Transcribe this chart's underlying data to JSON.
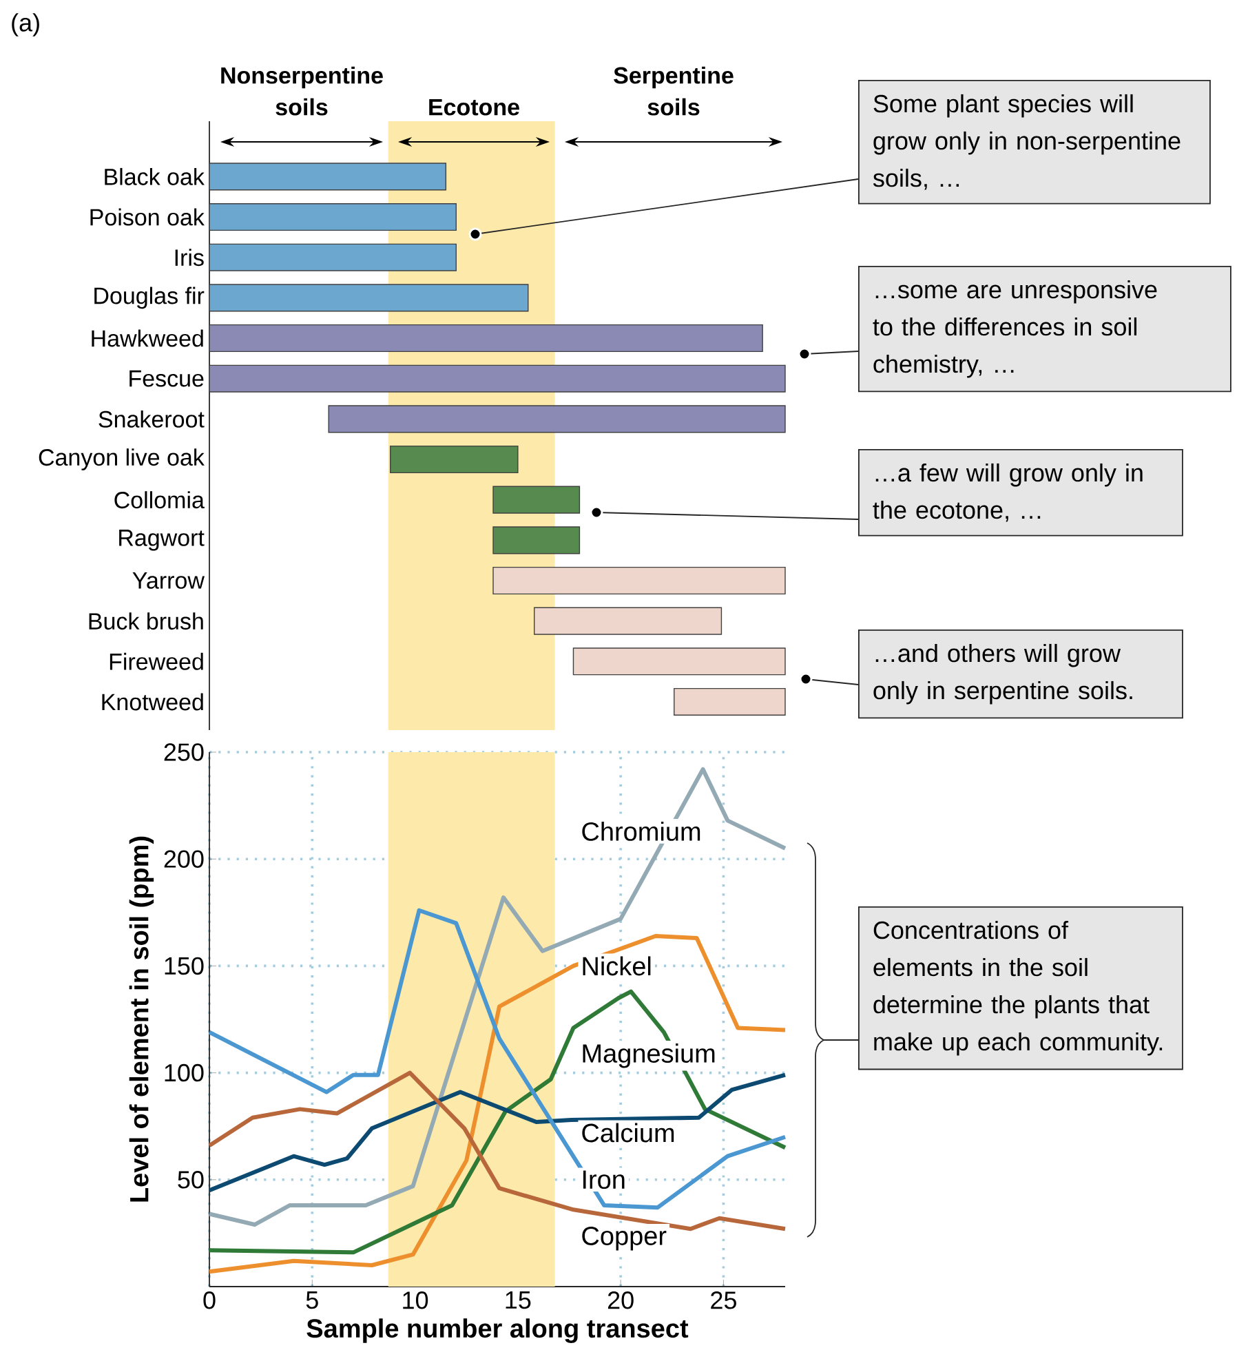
{
  "chart_data": [
    {
      "type": "bar",
      "orientation": "horizontal",
      "title": "(a)",
      "categories": [
        "Black oak",
        "Poison oak",
        "Iris",
        "Douglas fir",
        "Hawkweed",
        "Fescue",
        "Snakeroot",
        "Canyon live oak",
        "Collomia",
        "Ragwort",
        "Yarrow",
        "Buck brush",
        "Fireweed",
        "Knotweed"
      ],
      "base": [
        0,
        0,
        0,
        0,
        0,
        0,
        5.8,
        8.8,
        13.8,
        13.8,
        13.8,
        15.8,
        17.7,
        22.6
      ],
      "values": [
        11.5,
        12.0,
        12.0,
        15.5,
        26.9,
        28,
        22.2,
        6.2,
        4.2,
        4.2,
        14.2,
        9.1,
        10.3,
        5.4
      ],
      "colors": [
        "#6ba7cf",
        "#6ba7cf",
        "#6ba7cf",
        "#6ba7cf",
        "#8a8ab4",
        "#8a8ab4",
        "#8a8ab4",
        "#568a4f",
        "#568a4f",
        "#568a4f",
        "#efd6cc",
        "#efd6cc",
        "#efd6cc",
        "#efd6cc"
      ],
      "xlim": [
        0,
        28
      ],
      "tick_labels": "y",
      "bands": [
        {
          "axis": "x",
          "from": 8.7,
          "to": 16.8,
          "color": "#fde9a9"
        }
      ],
      "annotations": [
        "Nonserpentine soils",
        "Ecotone",
        "Serpentine soils",
        "Some plant species will grow only in non-serpentine soils, …",
        "…some are unresponsive to the differences in soil chemistry, …",
        "…a few will grow only in the ecotone, …",
        "…and others will grow only in serpentine soils."
      ]
    },
    {
      "type": "line",
      "xlabel": "Sample number along transect",
      "ylabel": "Level of element in soil (ppm)",
      "xlim": [
        0,
        28
      ],
      "ylim": [
        0,
        250
      ],
      "xticks": [
        0,
        5,
        10,
        15,
        20,
        25
      ],
      "yticks": [
        50,
        100,
        150,
        200,
        250
      ],
      "grid": true,
      "bands": [
        {
          "axis": "x",
          "from": 8.7,
          "to": 16.8,
          "color": "#fde9a9"
        }
      ],
      "series": [
        {
          "name": "Chromium",
          "color": "#93a9b4",
          "x": [
            0,
            2.2,
            3.9,
            7.6,
            9.9,
            14.3,
            16.2,
            20.0,
            24.0,
            25.2,
            28
          ],
          "values": [
            34,
            29,
            38,
            38,
            47,
            182,
            157,
            172,
            242,
            218,
            205
          ]
        },
        {
          "name": "Nickel",
          "color": "#ee8f2e",
          "x": [
            0,
            4.1,
            7.9,
            9.9,
            12.5,
            14.1,
            17.7,
            21.7,
            23.7,
            25.7,
            28
          ],
          "values": [
            7,
            12,
            10,
            15,
            59,
            131,
            150,
            164,
            163,
            121,
            120
          ]
        },
        {
          "name": "Magnesium",
          "color": "#2e7a36",
          "x": [
            0,
            7.0,
            11.8,
            14.4,
            16.6,
            17.7,
            19.9,
            20.5,
            22.1,
            24.1,
            28
          ],
          "values": [
            17,
            16,
            38,
            82,
            97,
            121,
            135,
            138,
            119,
            83,
            65
          ]
        },
        {
          "name": "Calcium",
          "color": "#0c4a72",
          "x": [
            0,
            4.1,
            5.6,
            6.7,
            7.9,
            12.2,
            15.9,
            17.6,
            23.8,
            25.4,
            28
          ],
          "values": [
            45,
            61,
            57,
            60,
            74,
            91,
            77,
            78,
            79,
            92,
            99
          ]
        },
        {
          "name": "Iron",
          "color": "#4a97d1",
          "x": [
            0,
            5.7,
            7.0,
            8.2,
            10.2,
            12.0,
            14.1,
            19.2,
            21.8,
            25.2,
            28
          ],
          "values": [
            119,
            91,
            99,
            99,
            176,
            170,
            116,
            38,
            37,
            61,
            70
          ]
        },
        {
          "name": "Copper",
          "color": "#b8673b",
          "x": [
            0,
            2.1,
            4.4,
            6.2,
            9.75,
            12.4,
            14.1,
            17.7,
            23.4,
            24.8,
            28
          ],
          "values": [
            66,
            79,
            83,
            81,
            100,
            74,
            46,
            36,
            27,
            32,
            27
          ]
        }
      ],
      "annotations": [
        "Concentrations of elements in the soil determine the plants that make up each community."
      ]
    }
  ]
}
